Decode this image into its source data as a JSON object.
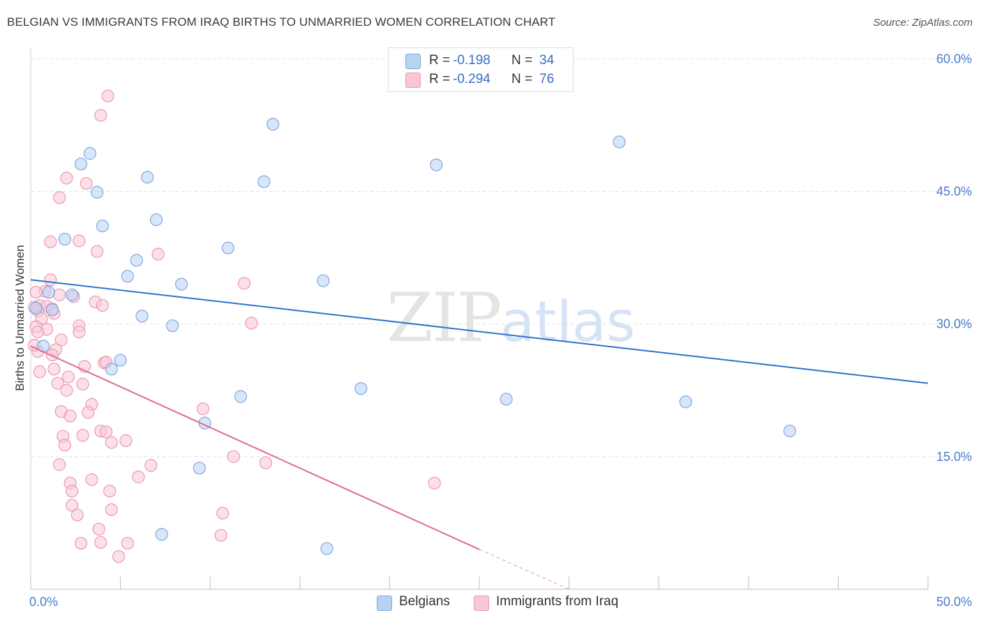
{
  "title": "BELGIAN VS IMMIGRANTS FROM IRAQ BIRTHS TO UNMARRIED WOMEN CORRELATION CHART",
  "source": "Source: ZipAtlas.com",
  "watermark": {
    "zip": "ZIP",
    "atlas": "atlas"
  },
  "legend_top": {
    "rows": [
      {
        "r_label": "R =",
        "r_value": "-0.198",
        "n_label": "N =",
        "n_value": "34"
      },
      {
        "r_label": "R =",
        "r_value": "-0.294",
        "n_label": "N =",
        "n_value": "76"
      }
    ]
  },
  "colors": {
    "belgians_fill": "#b8d2f4",
    "belgians_stroke": "#7fa9e0",
    "belgians_line": "#2f72cc",
    "iraq_fill": "#f9c6d6",
    "iraq_stroke": "#ec98b2",
    "iraq_line": "#e06a93",
    "grid": "#e2e2e2",
    "axis_text": "#4a7cc9"
  },
  "chart_data": {
    "type": "scatter",
    "title": "BELGIAN VS IMMIGRANTS FROM IRAQ BIRTHS TO UNMARRIED WOMEN CORRELATION CHART",
    "xlabel": "",
    "ylabel": "Births to Unmarried Women",
    "xlim": [
      0,
      50
    ],
    "ylim": [
      0,
      60
    ],
    "x_tick_labels": [
      "0.0%",
      "50.0%"
    ],
    "y_ticks": [
      15,
      30,
      45,
      60
    ],
    "y_tick_labels": [
      "15.0%",
      "30.0%",
      "45.0%",
      "60.0%"
    ],
    "grid": true,
    "legend_position": "bottom",
    "series": [
      {
        "name": "Belgians",
        "r": -0.198,
        "n": 34,
        "trend": {
          "x": [
            0,
            50
          ],
          "y": [
            35.0,
            23.3
          ]
        },
        "points": [
          [
            0.3,
            31.8
          ],
          [
            0.7,
            27.5
          ],
          [
            1.0,
            33.6
          ],
          [
            2.3,
            33.3
          ],
          [
            1.9,
            39.6
          ],
          [
            2.8,
            48.1
          ],
          [
            3.3,
            49.3
          ],
          [
            3.7,
            44.9
          ],
          [
            4.0,
            41.1
          ],
          [
            4.5,
            24.9
          ],
          [
            5.0,
            25.9
          ],
          [
            5.4,
            35.4
          ],
          [
            5.9,
            37.2
          ],
          [
            6.2,
            30.9
          ],
          [
            6.5,
            46.6
          ],
          [
            7.0,
            41.8
          ],
          [
            7.3,
            6.2
          ],
          [
            7.9,
            29.8
          ],
          [
            8.4,
            34.5
          ],
          [
            9.4,
            13.7
          ],
          [
            9.7,
            18.8
          ],
          [
            11.0,
            38.6
          ],
          [
            11.7,
            21.8
          ],
          [
            13.0,
            46.1
          ],
          [
            13.5,
            52.6
          ],
          [
            16.3,
            34.9
          ],
          [
            18.4,
            22.7
          ],
          [
            22.6,
            48.0
          ],
          [
            26.5,
            21.5
          ],
          [
            32.8,
            50.6
          ],
          [
            36.5,
            21.2
          ],
          [
            42.3,
            17.9
          ],
          [
            16.5,
            4.6
          ],
          [
            1.2,
            31.6
          ]
        ]
      },
      {
        "name": "Immigrants from Iraq",
        "r": -0.294,
        "n": 76,
        "trend": {
          "x": [
            0,
            25
          ],
          "y": [
            27.5,
            4.5
          ]
        },
        "trend_dashed": {
          "x": [
            25,
            30
          ],
          "y": [
            4.5,
            0
          ]
        },
        "points": [
          [
            4.3,
            55.8
          ],
          [
            3.9,
            53.6
          ],
          [
            2.0,
            46.5
          ],
          [
            3.1,
            45.9
          ],
          [
            1.6,
            44.3
          ],
          [
            1.1,
            39.3
          ],
          [
            2.7,
            39.4
          ],
          [
            3.7,
            38.2
          ],
          [
            7.1,
            37.9
          ],
          [
            1.1,
            35.0
          ],
          [
            0.8,
            33.7
          ],
          [
            0.3,
            33.6
          ],
          [
            1.6,
            33.3
          ],
          [
            2.4,
            33.1
          ],
          [
            0.5,
            32.1
          ],
          [
            0.9,
            32.0
          ],
          [
            1.2,
            31.7
          ],
          [
            0.4,
            31.5
          ],
          [
            0.2,
            31.9
          ],
          [
            1.3,
            31.2
          ],
          [
            0.6,
            30.6
          ],
          [
            3.6,
            32.5
          ],
          [
            4.0,
            32.1
          ],
          [
            11.9,
            34.6
          ],
          [
            0.3,
            29.7
          ],
          [
            0.9,
            29.4
          ],
          [
            0.4,
            29.1
          ],
          [
            2.7,
            29.8
          ],
          [
            2.7,
            29.1
          ],
          [
            12.3,
            30.1
          ],
          [
            1.7,
            28.2
          ],
          [
            1.4,
            27.1
          ],
          [
            0.4,
            26.9
          ],
          [
            1.2,
            26.5
          ],
          [
            4.1,
            25.6
          ],
          [
            3.0,
            25.2
          ],
          [
            1.3,
            24.9
          ],
          [
            0.5,
            24.6
          ],
          [
            2.1,
            24.0
          ],
          [
            1.5,
            23.3
          ],
          [
            2.9,
            23.2
          ],
          [
            2.0,
            22.5
          ],
          [
            3.4,
            20.9
          ],
          [
            1.7,
            20.1
          ],
          [
            3.2,
            20.0
          ],
          [
            2.2,
            19.6
          ],
          [
            9.6,
            20.4
          ],
          [
            3.9,
            17.9
          ],
          [
            4.2,
            17.8
          ],
          [
            2.9,
            17.4
          ],
          [
            1.8,
            17.3
          ],
          [
            5.3,
            16.8
          ],
          [
            4.5,
            16.6
          ],
          [
            1.9,
            16.3
          ],
          [
            11.3,
            15.0
          ],
          [
            1.6,
            14.1
          ],
          [
            13.1,
            14.3
          ],
          [
            6.7,
            14.0
          ],
          [
            6.0,
            12.7
          ],
          [
            3.4,
            12.4
          ],
          [
            2.2,
            12.0
          ],
          [
            22.5,
            12.0
          ],
          [
            2.3,
            11.1
          ],
          [
            4.4,
            11.1
          ],
          [
            2.3,
            9.5
          ],
          [
            4.5,
            9.0
          ],
          [
            10.7,
            8.6
          ],
          [
            2.6,
            8.4
          ],
          [
            3.8,
            6.8
          ],
          [
            10.6,
            6.1
          ],
          [
            2.8,
            5.2
          ],
          [
            3.9,
            5.3
          ],
          [
            5.4,
            5.2
          ],
          [
            4.9,
            3.7
          ],
          [
            4.2,
            25.7
          ],
          [
            0.2,
            27.6
          ]
        ]
      }
    ]
  }
}
